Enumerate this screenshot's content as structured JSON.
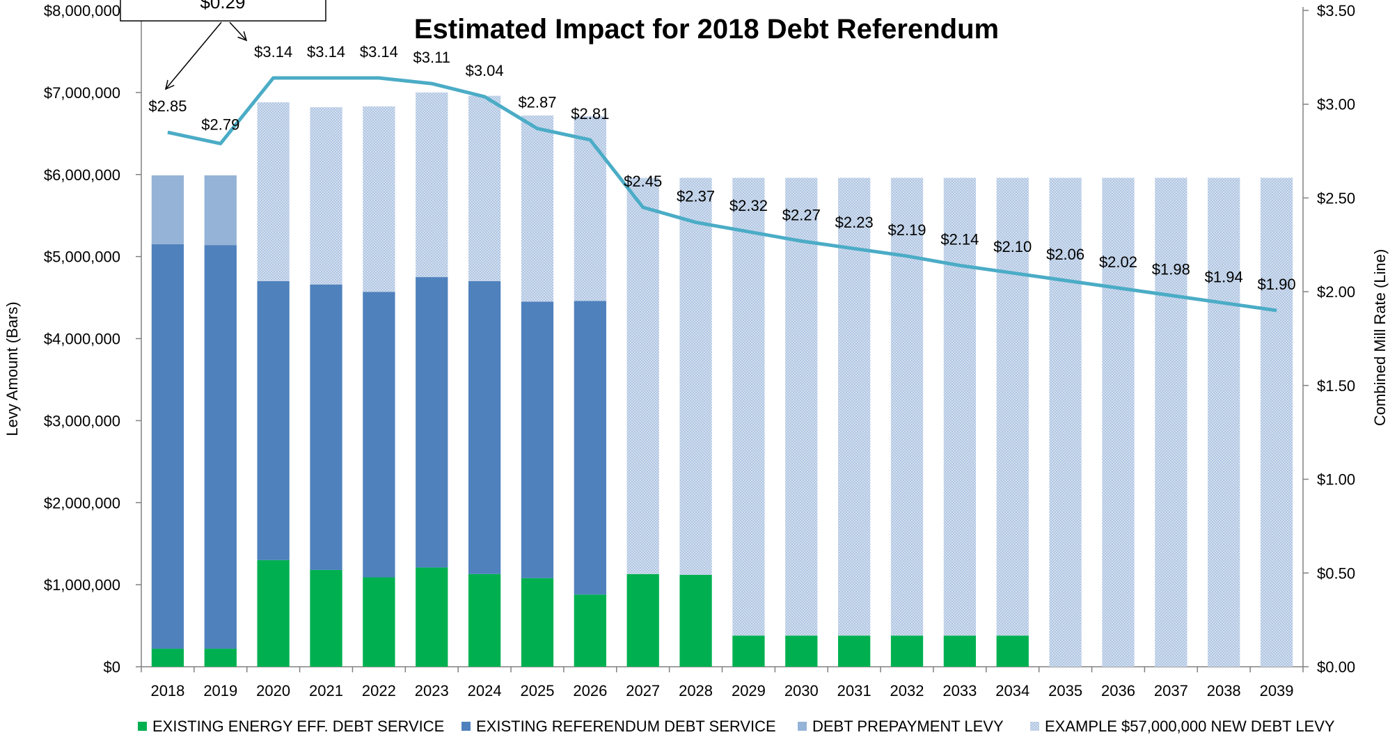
{
  "chart_data": {
    "type": "bar",
    "title": "Estimated Impact for 2018 Debt Referendum",
    "ylabel": "Levy Amount (Bars)",
    "y2label": "Combined Mill Rate (Line)",
    "ylim": [
      0,
      8000000
    ],
    "y2lim": [
      0,
      3.5
    ],
    "yticks": [
      "$0",
      "$1,000,000",
      "$2,000,000",
      "$3,000,000",
      "$4,000,000",
      "$5,000,000",
      "$6,000,000",
      "$7,000,000",
      "$8,000,000"
    ],
    "y2ticks": [
      "$0.00",
      "$0.50",
      "$1.00",
      "$1.50",
      "$2.00",
      "$2.50",
      "$3.00",
      "$3.50"
    ],
    "categories": [
      "2018",
      "2019",
      "2020",
      "2021",
      "2022",
      "2023",
      "2024",
      "2025",
      "2026",
      "2027",
      "2028",
      "2029",
      "2030",
      "2031",
      "2032",
      "2033",
      "2034",
      "2035",
      "2036",
      "2037",
      "2038",
      "2039"
    ],
    "stacked": true,
    "series": [
      {
        "name": "EXISTING ENERGY EFF. DEBT SERVICE",
        "color": "#00b050",
        "pattern": "solid",
        "values": [
          220000,
          220000,
          1300000,
          1180000,
          1090000,
          1210000,
          1130000,
          1080000,
          880000,
          1130000,
          1120000,
          380000,
          380000,
          380000,
          380000,
          380000,
          380000,
          0,
          0,
          0,
          0,
          0
        ]
      },
      {
        "name": "EXISTING REFERENDUM DEBT SERVICE",
        "color": "#4f81bd",
        "pattern": "solid",
        "values": [
          4930000,
          4920000,
          3400000,
          3480000,
          3480000,
          3540000,
          3570000,
          3370000,
          3580000,
          0,
          0,
          0,
          0,
          0,
          0,
          0,
          0,
          0,
          0,
          0,
          0,
          0
        ]
      },
      {
        "name": "DEBT PREPAYMENT LEVY",
        "color": "#95b3d7",
        "pattern": "solid",
        "values": [
          840000,
          850000,
          0,
          0,
          0,
          0,
          0,
          0,
          0,
          0,
          0,
          0,
          0,
          0,
          0,
          0,
          0,
          0,
          0,
          0,
          0,
          0
        ]
      },
      {
        "name": "EXAMPLE $57,000,000 NEW DEBT LEVY",
        "color": "#b8cce4",
        "pattern": "hatched",
        "values": [
          0,
          0,
          2180000,
          2160000,
          2260000,
          2250000,
          2260000,
          2270000,
          2250000,
          4830000,
          4840000,
          5580000,
          5580000,
          5580000,
          5580000,
          5580000,
          5580000,
          5960000,
          5960000,
          5960000,
          5960000,
          5960000
        ]
      }
    ],
    "line": {
      "axis": "right",
      "color": "#4bacc6",
      "values": [
        2.85,
        2.79,
        3.14,
        3.14,
        3.14,
        3.11,
        3.04,
        2.87,
        2.81,
        2.45,
        2.37,
        2.32,
        2.27,
        2.23,
        2.19,
        2.14,
        2.1,
        2.06,
        2.02,
        1.98,
        1.94,
        1.9
      ],
      "labels": [
        "$2.85",
        "$2.79",
        "$3.14",
        "$3.14",
        "$3.14",
        "$3.11",
        "$3.04",
        "$2.87",
        "$2.81",
        "$2.45",
        "$2.37",
        "$2.32",
        "$2.27",
        "$2.23",
        "$2.19",
        "$2.14",
        "$2.10",
        "$2.06",
        "$2.02",
        "$1.98",
        "$1.94",
        "$1.90"
      ]
    },
    "annotation": {
      "text": "$0.29"
    },
    "legend_position": "bottom",
    "grid": false
  }
}
